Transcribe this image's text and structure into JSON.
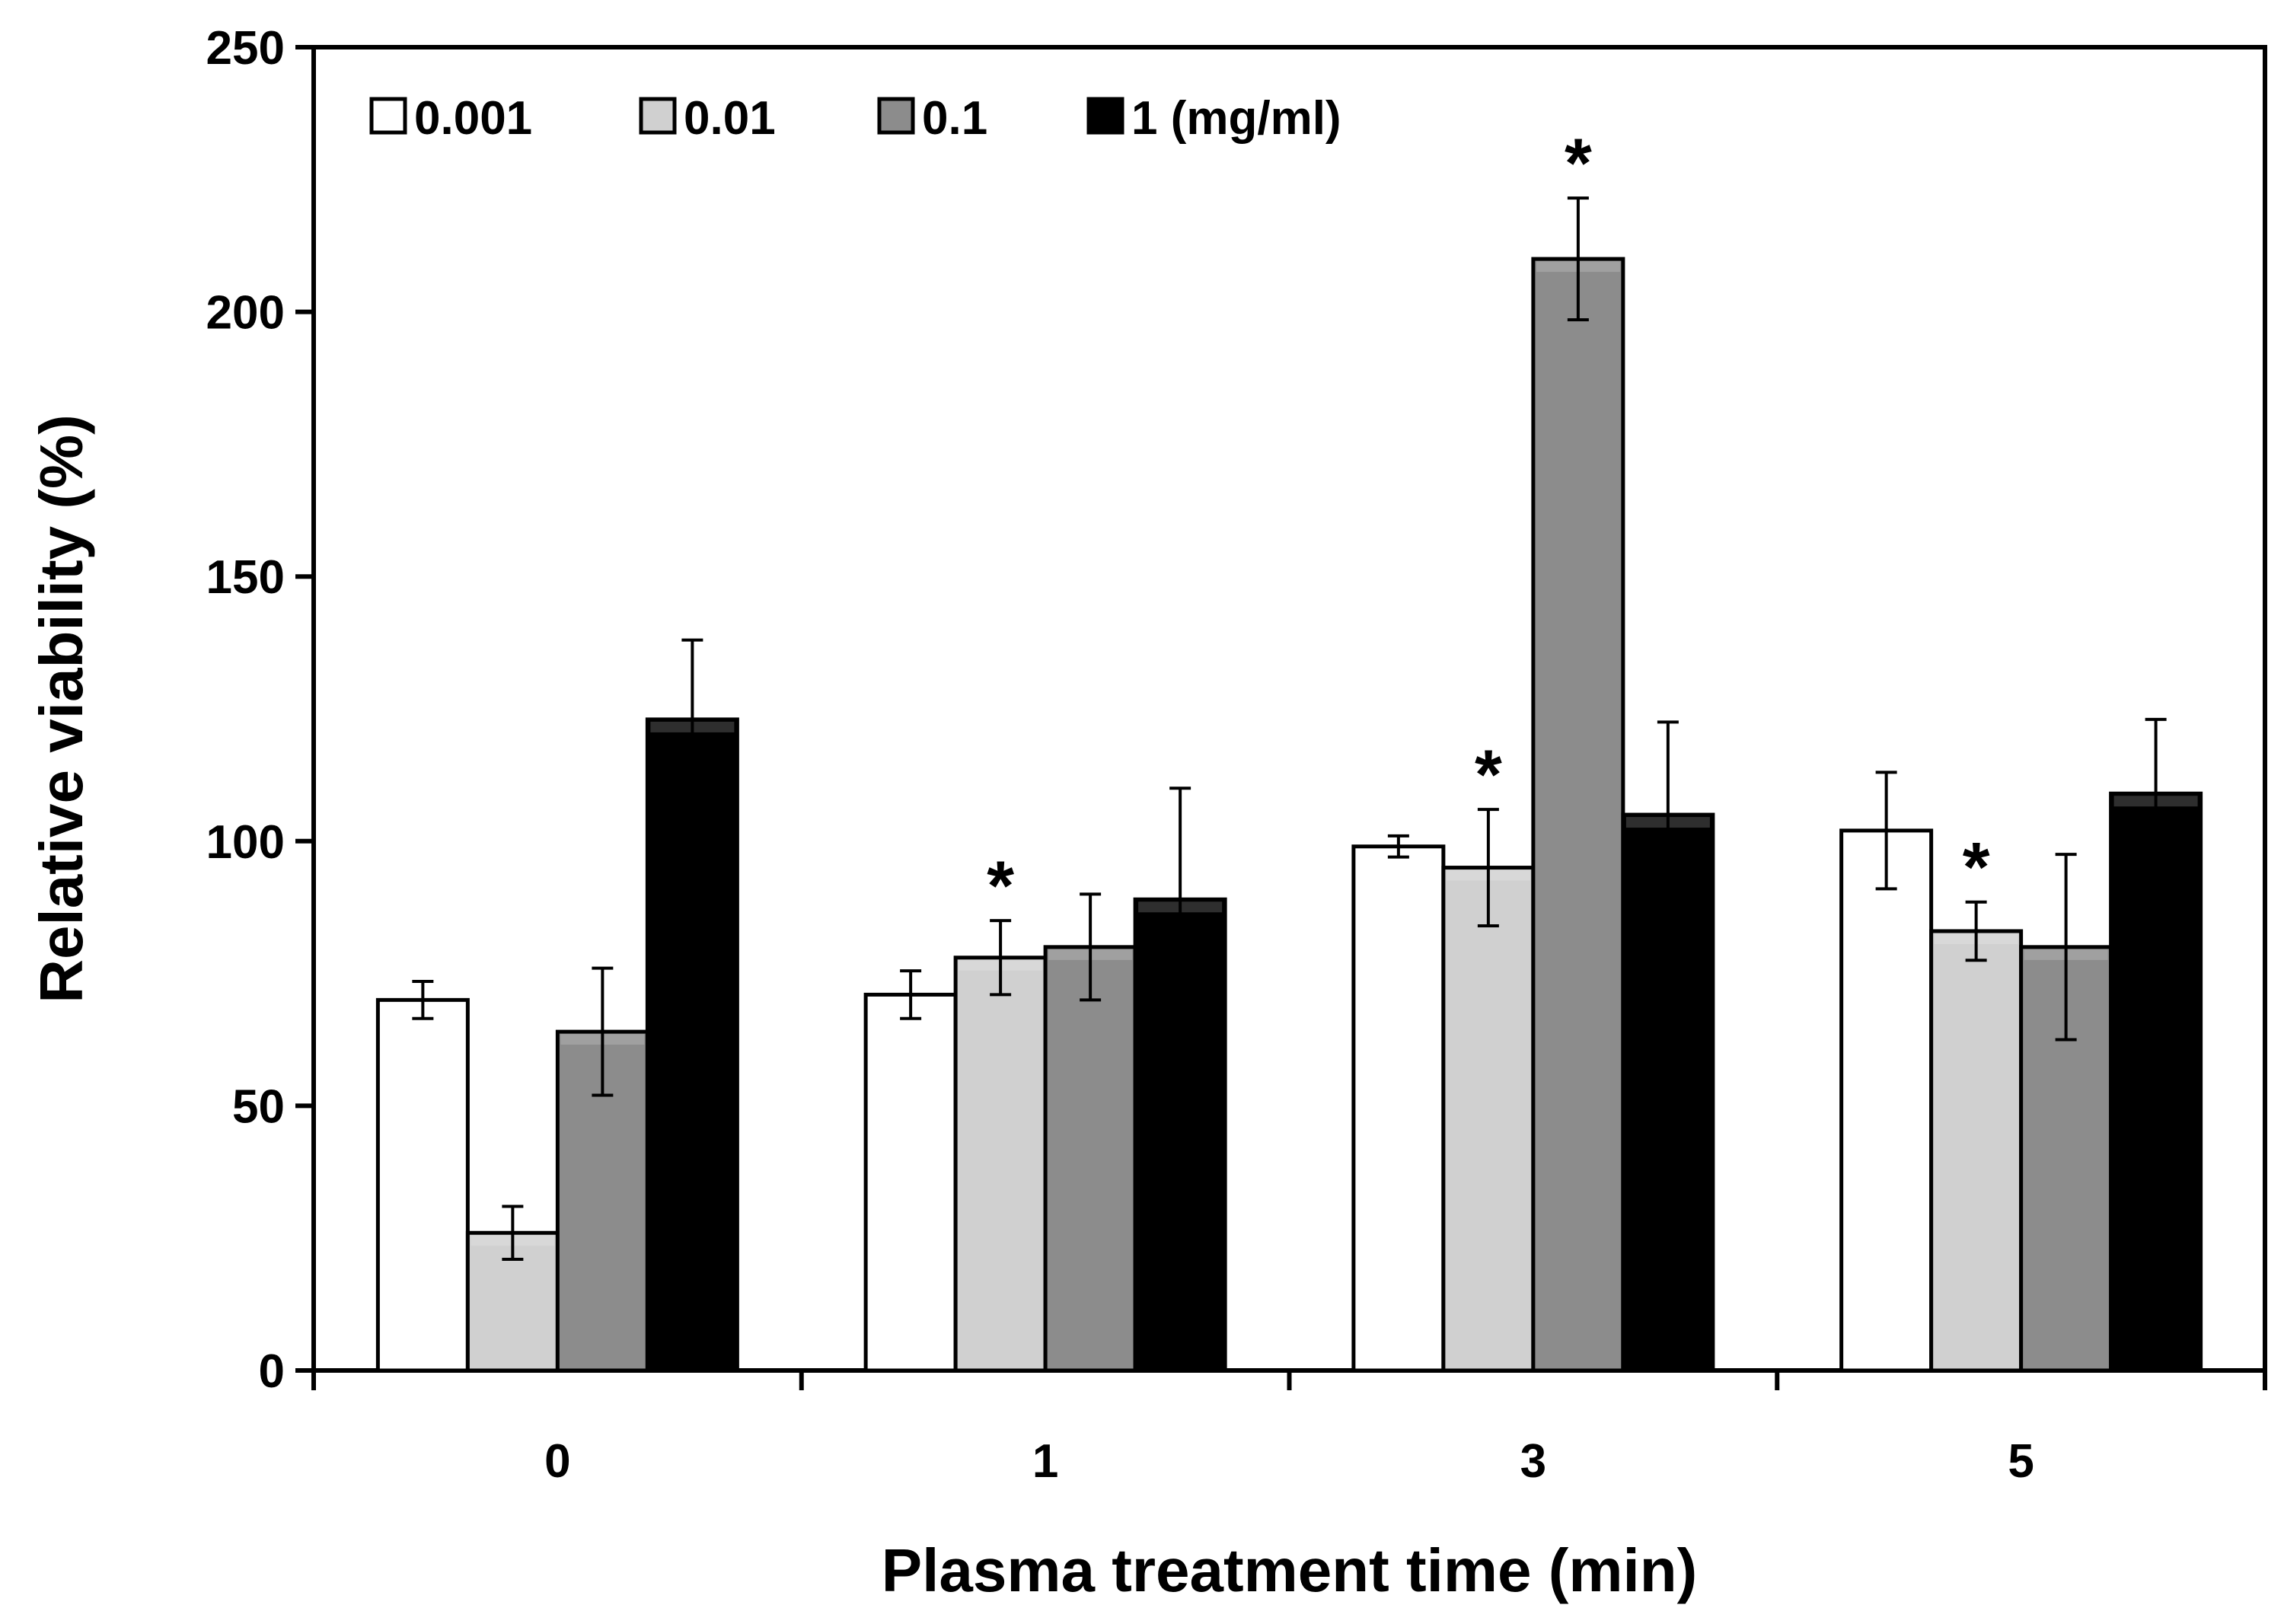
{
  "chart_data": {
    "type": "bar",
    "title": "",
    "xlabel": "Plasma treatment time (min)",
    "ylabel": "Relative viability (%)",
    "categories": [
      "0",
      "1",
      "3",
      "5"
    ],
    "ylim": [
      0,
      250
    ],
    "yticks": [
      "0",
      "50",
      "100",
      "150",
      "200",
      "250"
    ],
    "grid": false,
    "legend_position": "top-left",
    "series": [
      {
        "name": "0.001",
        "color": "#ffffff",
        "values": [
          70,
          71,
          99,
          102
        ],
        "errors": [
          3.5,
          4.5,
          2,
          11
        ]
      },
      {
        "name": "0.01",
        "color": "#d0d0d0",
        "values": [
          26,
          78,
          95,
          83
        ],
        "errors": [
          5,
          7,
          11,
          5.5
        ]
      },
      {
        "name": "0.1",
        "color": "#8c8c8c",
        "values": [
          64,
          80,
          210,
          80
        ],
        "errors": [
          12,
          10,
          11.5,
          17.5
        ]
      },
      {
        "name": "1 (mg/ml)",
        "color": "#000000",
        "values": [
          123,
          89,
          105,
          109
        ],
        "errors": [
          15,
          21,
          17.5,
          14
        ]
      }
    ],
    "significance": [
      {
        "category": "1",
        "series": "0.01",
        "label": "*"
      },
      {
        "category": "3",
        "series": "0.01",
        "label": "*"
      },
      {
        "category": "3",
        "series": "0.1",
        "label": "*"
      },
      {
        "category": "5",
        "series": "0.01",
        "label": "*"
      }
    ]
  }
}
